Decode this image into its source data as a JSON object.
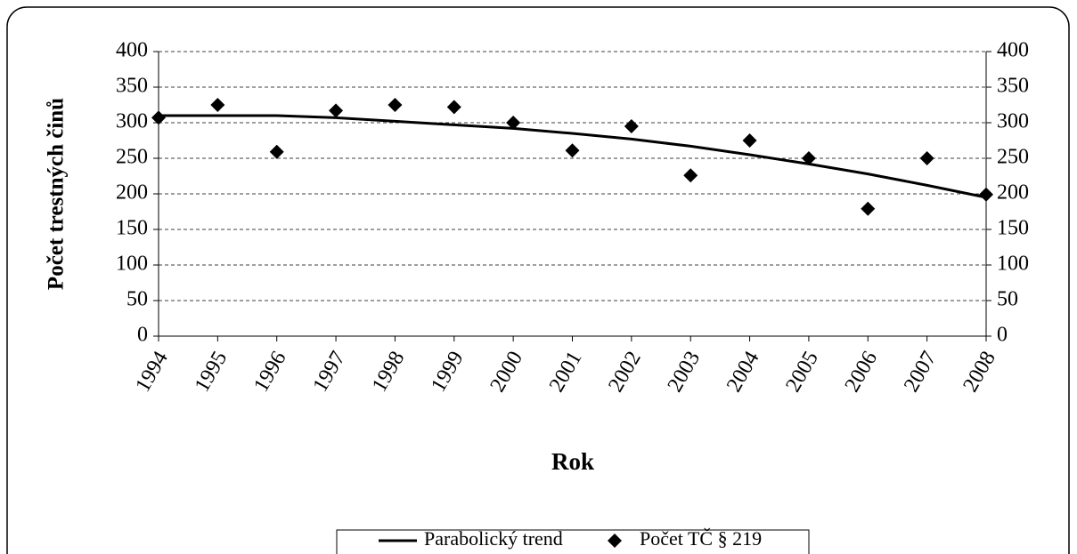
{
  "chart_data": {
    "type": "line",
    "x_label": "Rok",
    "y_label": "Počet trestných činů",
    "x": [
      1994,
      1995,
      1996,
      1997,
      1998,
      1999,
      2000,
      2001,
      2002,
      2003,
      2004,
      2005,
      2006,
      2007,
      2008
    ],
    "xlim": [
      1994,
      2008
    ],
    "xticks": [
      1994,
      1995,
      1996,
      1997,
      1998,
      1999,
      2000,
      2001,
      2002,
      2003,
      2004,
      2005,
      2006,
      2007,
      2008
    ],
    "ylim": [
      0,
      400
    ],
    "yticks": [
      0,
      50,
      100,
      150,
      200,
      250,
      300,
      350,
      400
    ],
    "y2lim": [
      0,
      400
    ],
    "y2ticks": [
      0,
      50,
      100,
      150,
      200,
      250,
      300,
      350,
      400
    ],
    "grid": true,
    "legend": "bottom",
    "series": [
      {
        "name": "Parabolický trend",
        "type": "line",
        "color": "#000000",
        "values": [
          310,
          310,
          310,
          307,
          302,
          297,
          292,
          285,
          277,
          267,
          255,
          242,
          228,
          212,
          195
        ]
      },
      {
        "name": "Počet TČ § 219",
        "type": "scatter",
        "color": "#000000",
        "values": [
          307,
          325,
          259,
          317,
          325,
          322,
          300,
          261,
          295,
          226,
          275,
          250,
          179,
          250,
          199
        ]
      }
    ]
  }
}
